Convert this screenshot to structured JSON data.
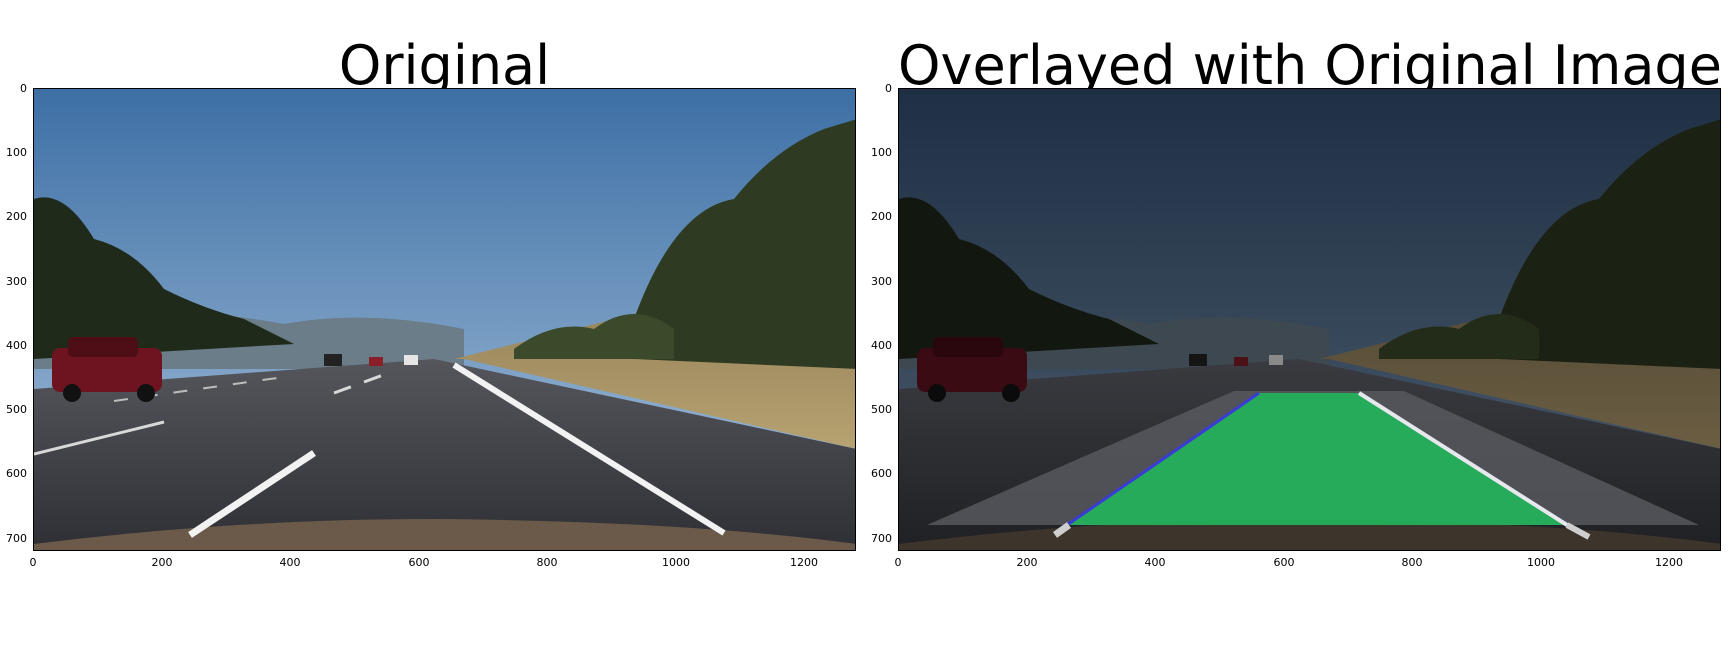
{
  "panels": [
    {
      "title": "Original",
      "x_ticks": [
        "0",
        "200",
        "400",
        "600",
        "800",
        "1000",
        "1200"
      ],
      "y_ticks": [
        "0",
        "100",
        "200",
        "300",
        "400",
        "500",
        "600",
        "700"
      ]
    },
    {
      "title": "Overlayed with Original Image",
      "x_ticks": [
        "0",
        "200",
        "400",
        "600",
        "800",
        "1000",
        "1200"
      ],
      "y_ticks": [
        "0",
        "100",
        "200",
        "300",
        "400",
        "500",
        "600",
        "700"
      ]
    }
  ],
  "colors": {
    "sky_top": "#3d6fa5",
    "sky_horizon": "#a9c3dc",
    "road": "#3a3b40",
    "lane_fill": "#22b35a",
    "lane_line_left": "#3b3bd6",
    "lane_line_right": "#e7e7ee"
  }
}
